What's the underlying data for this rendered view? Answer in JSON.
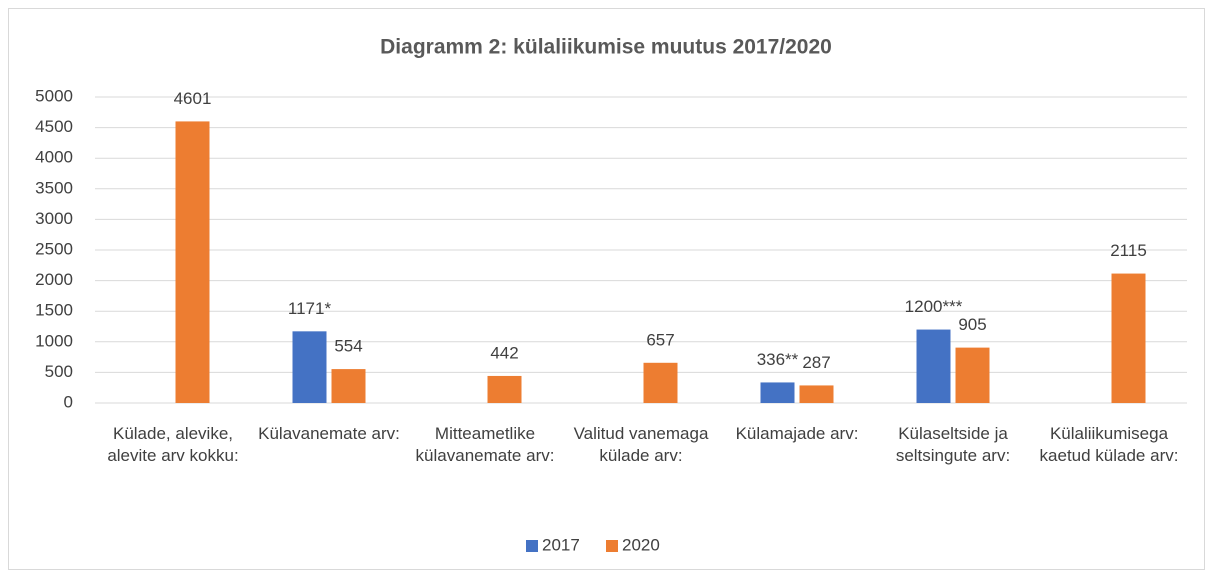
{
  "chart_data": {
    "type": "bar",
    "title": "Diagramm 2: külaliikumise muutus 2017/2020",
    "categories": [
      "Külade, alevike, alevite arv kokku:",
      "Külavanemate arv:",
      "Mitteametlike külavanemate arv:",
      "Valitud vanemaga külade arv:",
      "Külamajade arv:",
      "Külaseltside ja seltsingute arv:",
      "Külaliikumisega kaetud külade arv:"
    ],
    "series": [
      {
        "name": "2017",
        "color": "#4472c4",
        "values": [
          null,
          1171,
          null,
          null,
          336,
          1200,
          null
        ],
        "value_labels": [
          null,
          "1171*",
          null,
          null,
          "336**",
          "1200***",
          null
        ]
      },
      {
        "name": "2020",
        "color": "#ed7d31",
        "values": [
          4601,
          554,
          442,
          657,
          287,
          905,
          2115
        ]
      }
    ],
    "ylim": [
      0,
      5000
    ],
    "yticks": [
      0,
      500,
      1000,
      1500,
      2000,
      2500,
      3000,
      3500,
      4000,
      4500,
      5000
    ],
    "grid": true,
    "legend": "bottom"
  }
}
